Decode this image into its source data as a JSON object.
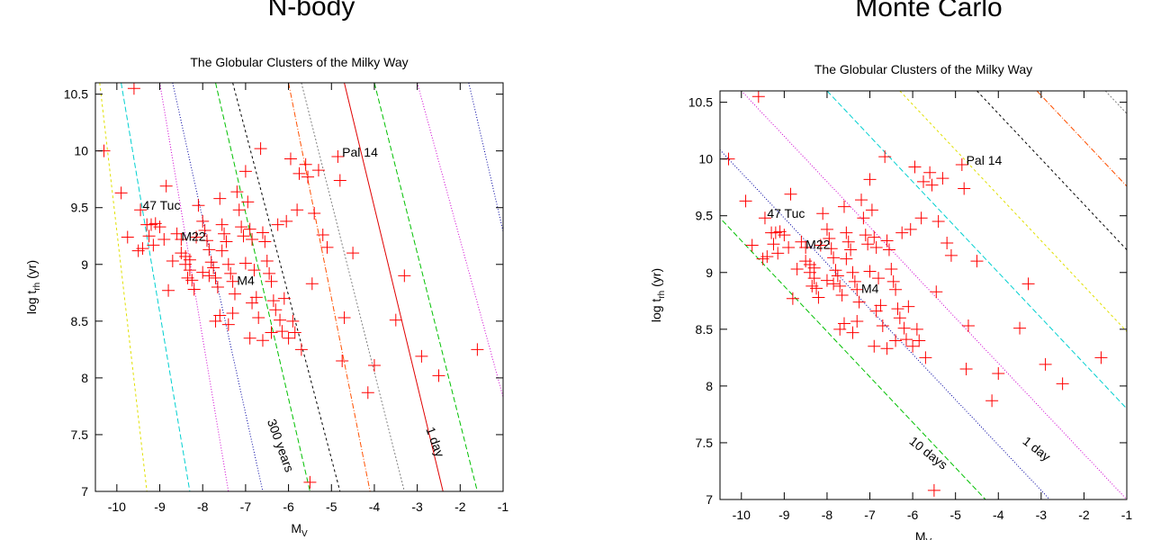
{
  "headings": {
    "left": "N-body",
    "right": "Monte Carlo"
  },
  "chart_data": [
    {
      "type": "scatter",
      "panel": "N-body",
      "title": "The Globular Clusters of the Milky Way",
      "xlabel": "M",
      "xlabel_sub": "V",
      "ylabel": "log t",
      "ylabel_sub": "rh",
      "ylabel_unit": " (yr)",
      "xlim": [
        -10.5,
        -1
      ],
      "ylim": [
        7,
        10.6
      ],
      "xticks": [
        -10,
        -9,
        -8,
        -7,
        -6,
        -5,
        -4,
        -3,
        -2,
        -1
      ],
      "yticks": [
        7,
        7.5,
        8,
        8.5,
        9,
        9.5,
        10,
        10.5
      ],
      "grid": false,
      "contour_lines": {
        "direction": "steep",
        "lines": [
          {
            "x_top": -10.4,
            "x_bottom": -9.3,
            "color": "#e0e000",
            "dash": "3,3"
          },
          {
            "x_top": -9.9,
            "x_bottom": -8.3,
            "color": "#00d0d0",
            "dash": "6,3"
          },
          {
            "x_top": -9.0,
            "x_bottom": -7.4,
            "color": "#d000d0",
            "dash": "1,2"
          },
          {
            "x_top": -8.7,
            "x_bottom": -6.6,
            "color": "#0000a0",
            "dash": "1,2"
          },
          {
            "x_top": -7.7,
            "x_bottom": -5.5,
            "color": "#00c000",
            "dash": "6,3"
          },
          {
            "x_top": -7.3,
            "x_bottom": -4.8,
            "color": "#000000",
            "dash": "3,3"
          },
          {
            "x_top": -6.0,
            "x_bottom": -4.1,
            "color": "#ff5000",
            "dash": "6,2,1,2"
          },
          {
            "x_top": -5.7,
            "x_bottom": -3.3,
            "color": "#808080",
            "dash": "2,2"
          },
          {
            "x_top": -4.7,
            "x_bottom": -2.4,
            "color": "#e00000",
            "dash": ""
          },
          {
            "x_top": -4.0,
            "x_bottom": -1.6,
            "color": "#00c000",
            "dash": "6,3"
          },
          {
            "x_top": -3.0,
            "x_bottom": -0.4,
            "color": "#d000d0",
            "dash": "1,2"
          },
          {
            "x_top": -1.8,
            "x_bottom": 0.4,
            "color": "#0000a0",
            "dash": "1,2"
          },
          {
            "x_top": -0.8,
            "x_bottom": 1.4,
            "color": "#00d0d0",
            "dash": "6,3"
          }
        ]
      },
      "annotations": [
        {
          "text": "47 Tuc",
          "x": -9.4,
          "y": 9.48,
          "rotate": 0
        },
        {
          "text": "M22",
          "x": -8.5,
          "y": 9.21,
          "rotate": 0
        },
        {
          "text": "M4",
          "x": -7.2,
          "y": 8.82,
          "rotate": 0
        },
        {
          "text": "Pal 14",
          "x": -4.75,
          "y": 9.95,
          "rotate": 0
        },
        {
          "text": "300 years",
          "x": -6.5,
          "y": 7.62,
          "rotate": 70
        },
        {
          "text": "1 day",
          "x": -2.8,
          "y": 7.55,
          "rotate": 70
        }
      ]
    },
    {
      "type": "scatter",
      "panel": "Monte Carlo",
      "title": "The Globular Clusters of the Milky Way",
      "xlabel": "M",
      "xlabel_sub": "V",
      "ylabel": "log t",
      "ylabel_sub": "rh",
      "ylabel_unit": " (yr)",
      "xlim": [
        -10.5,
        -1
      ],
      "ylim": [
        7,
        10.6
      ],
      "xticks": [
        -10,
        -9,
        -8,
        -7,
        -6,
        -5,
        -4,
        -3,
        -2,
        -1
      ],
      "yticks": [
        7,
        7.5,
        8,
        8.5,
        9,
        9.5,
        10,
        10.5
      ],
      "grid": false,
      "contour_lines": {
        "direction": "diagonal",
        "lines": [
          {
            "x_at_top": -13.3,
            "slope": -0.4,
            "color": "#00c000",
            "dash": "6,3"
          },
          {
            "x_at_top": -11.8,
            "slope": -0.4,
            "color": "#0000a0",
            "dash": "1,2"
          },
          {
            "x_at_top": -10.0,
            "slope": -0.4,
            "color": "#d000d0",
            "dash": "1,2"
          },
          {
            "x_at_top": -8.0,
            "slope": -0.4,
            "color": "#00d0d0",
            "dash": "6,3"
          },
          {
            "x_at_top": -6.3,
            "slope": -0.4,
            "color": "#e0e000",
            "dash": "3,3"
          },
          {
            "x_at_top": -4.5,
            "slope": -0.4,
            "color": "#000000",
            "dash": "3,3"
          },
          {
            "x_at_top": -3.1,
            "slope": -0.4,
            "color": "#ff5000",
            "dash": "6,2,1,2"
          },
          {
            "x_at_top": -1.5,
            "slope": -0.4,
            "color": "#808080",
            "dash": "2,2"
          }
        ]
      },
      "annotations": [
        {
          "text": "47 Tuc",
          "x": -9.4,
          "y": 9.48,
          "rotate": 0
        },
        {
          "text": "M22",
          "x": -8.5,
          "y": 9.21,
          "rotate": 0
        },
        {
          "text": "M4",
          "x": -7.2,
          "y": 8.82,
          "rotate": 0
        },
        {
          "text": "Pal 14",
          "x": -4.75,
          "y": 9.95,
          "rotate": 0
        },
        {
          "text": "10 days",
          "x": -6.1,
          "y": 7.5,
          "rotate": 38
        },
        {
          "text": "1 day",
          "x": -3.45,
          "y": 7.5,
          "rotate": 38
        }
      ]
    }
  ],
  "points": [
    [
      -10.3,
      10.0
    ],
    [
      -9.9,
      9.63
    ],
    [
      -9.6,
      10.55
    ],
    [
      -9.45,
      9.48
    ],
    [
      -9.3,
      9.35
    ],
    [
      -9.2,
      9.35
    ],
    [
      -9.1,
      9.36
    ],
    [
      -9.0,
      9.33
    ],
    [
      -9.15,
      9.17
    ],
    [
      -9.4,
      9.14
    ],
    [
      -9.5,
      9.12
    ],
    [
      -9.75,
      9.24
    ],
    [
      -9.25,
      9.25
    ],
    [
      -8.85,
      9.69
    ],
    [
      -8.9,
      9.22
    ],
    [
      -8.8,
      8.77
    ],
    [
      -8.7,
      9.03
    ],
    [
      -8.5,
      9.22
    ],
    [
      -8.5,
      9.1
    ],
    [
      -8.4,
      9.07
    ],
    [
      -8.3,
      8.95
    ],
    [
      -8.35,
      8.88
    ],
    [
      -8.25,
      8.86
    ],
    [
      -8.15,
      9.24
    ],
    [
      -8.1,
      9.52
    ],
    [
      -8.0,
      9.38
    ],
    [
      -7.95,
      9.3
    ],
    [
      -7.9,
      9.21
    ],
    [
      -7.85,
      9.13
    ],
    [
      -7.8,
      9.02
    ],
    [
      -7.75,
      8.97
    ],
    [
      -7.7,
      8.88
    ],
    [
      -7.65,
      8.8
    ],
    [
      -7.6,
      9.58
    ],
    [
      -7.55,
      9.35
    ],
    [
      -7.5,
      9.27
    ],
    [
      -7.45,
      9.2
    ],
    [
      -7.4,
      9.0
    ],
    [
      -7.35,
      8.92
    ],
    [
      -7.3,
      8.85
    ],
    [
      -7.25,
      8.74
    ],
    [
      -7.2,
      9.64
    ],
    [
      -7.15,
      9.48
    ],
    [
      -7.1,
      9.33
    ],
    [
      -7.05,
      9.25
    ],
    [
      -7.0,
      9.82
    ],
    [
      -6.95,
      9.55
    ],
    [
      -6.9,
      9.31
    ],
    [
      -6.85,
      9.22
    ],
    [
      -6.8,
      8.95
    ],
    [
      -6.75,
      8.71
    ],
    [
      -6.7,
      8.53
    ],
    [
      -6.65,
      10.02
    ],
    [
      -6.6,
      9.28
    ],
    [
      -6.55,
      9.2
    ],
    [
      -6.5,
      9.03
    ],
    [
      -6.45,
      8.92
    ],
    [
      -6.4,
      8.85
    ],
    [
      -6.35,
      8.68
    ],
    [
      -6.3,
      8.6
    ],
    [
      -6.25,
      9.35
    ],
    [
      -6.2,
      8.51
    ],
    [
      -6.15,
      8.41
    ],
    [
      -6.1,
      8.7
    ],
    [
      -6.05,
      9.38
    ],
    [
      -6.0,
      8.35
    ],
    [
      -5.95,
      9.93
    ],
    [
      -5.9,
      8.5
    ],
    [
      -5.85,
      8.4
    ],
    [
      -5.8,
      9.48
    ],
    [
      -5.75,
      9.8
    ],
    [
      -5.7,
      8.25
    ],
    [
      -5.6,
      9.88
    ],
    [
      -5.55,
      9.77
    ],
    [
      -5.5,
      7.08
    ],
    [
      -5.45,
      8.83
    ],
    [
      -5.4,
      9.45
    ],
    [
      -5.3,
      9.83
    ],
    [
      -5.2,
      9.26
    ],
    [
      -5.1,
      9.15
    ],
    [
      -4.85,
      9.95
    ],
    [
      -4.8,
      9.74
    ],
    [
      -4.75,
      8.15
    ],
    [
      -4.7,
      8.53
    ],
    [
      -4.5,
      9.1
    ],
    [
      -4.15,
      7.87
    ],
    [
      -4.0,
      8.11
    ],
    [
      -3.5,
      8.51
    ],
    [
      -3.3,
      8.9
    ],
    [
      -2.9,
      8.19
    ],
    [
      -2.5,
      8.02
    ],
    [
      -1.6,
      8.25
    ],
    [
      -7.7,
      8.5
    ],
    [
      -7.6,
      8.55
    ],
    [
      -8.0,
      8.93
    ],
    [
      -7.85,
      8.9
    ],
    [
      -8.2,
      8.78
    ],
    [
      -7.4,
      8.47
    ],
    [
      -6.9,
      8.35
    ],
    [
      -6.6,
      8.33
    ],
    [
      -6.4,
      8.4
    ],
    [
      -7.3,
      8.57
    ],
    [
      -8.4,
      9.0
    ],
    [
      -8.6,
      9.27
    ],
    [
      -7.0,
      9.01
    ],
    [
      -6.85,
      8.66
    ],
    [
      -7.55,
      9.12
    ],
    [
      -8.3,
      9.04
    ]
  ]
}
